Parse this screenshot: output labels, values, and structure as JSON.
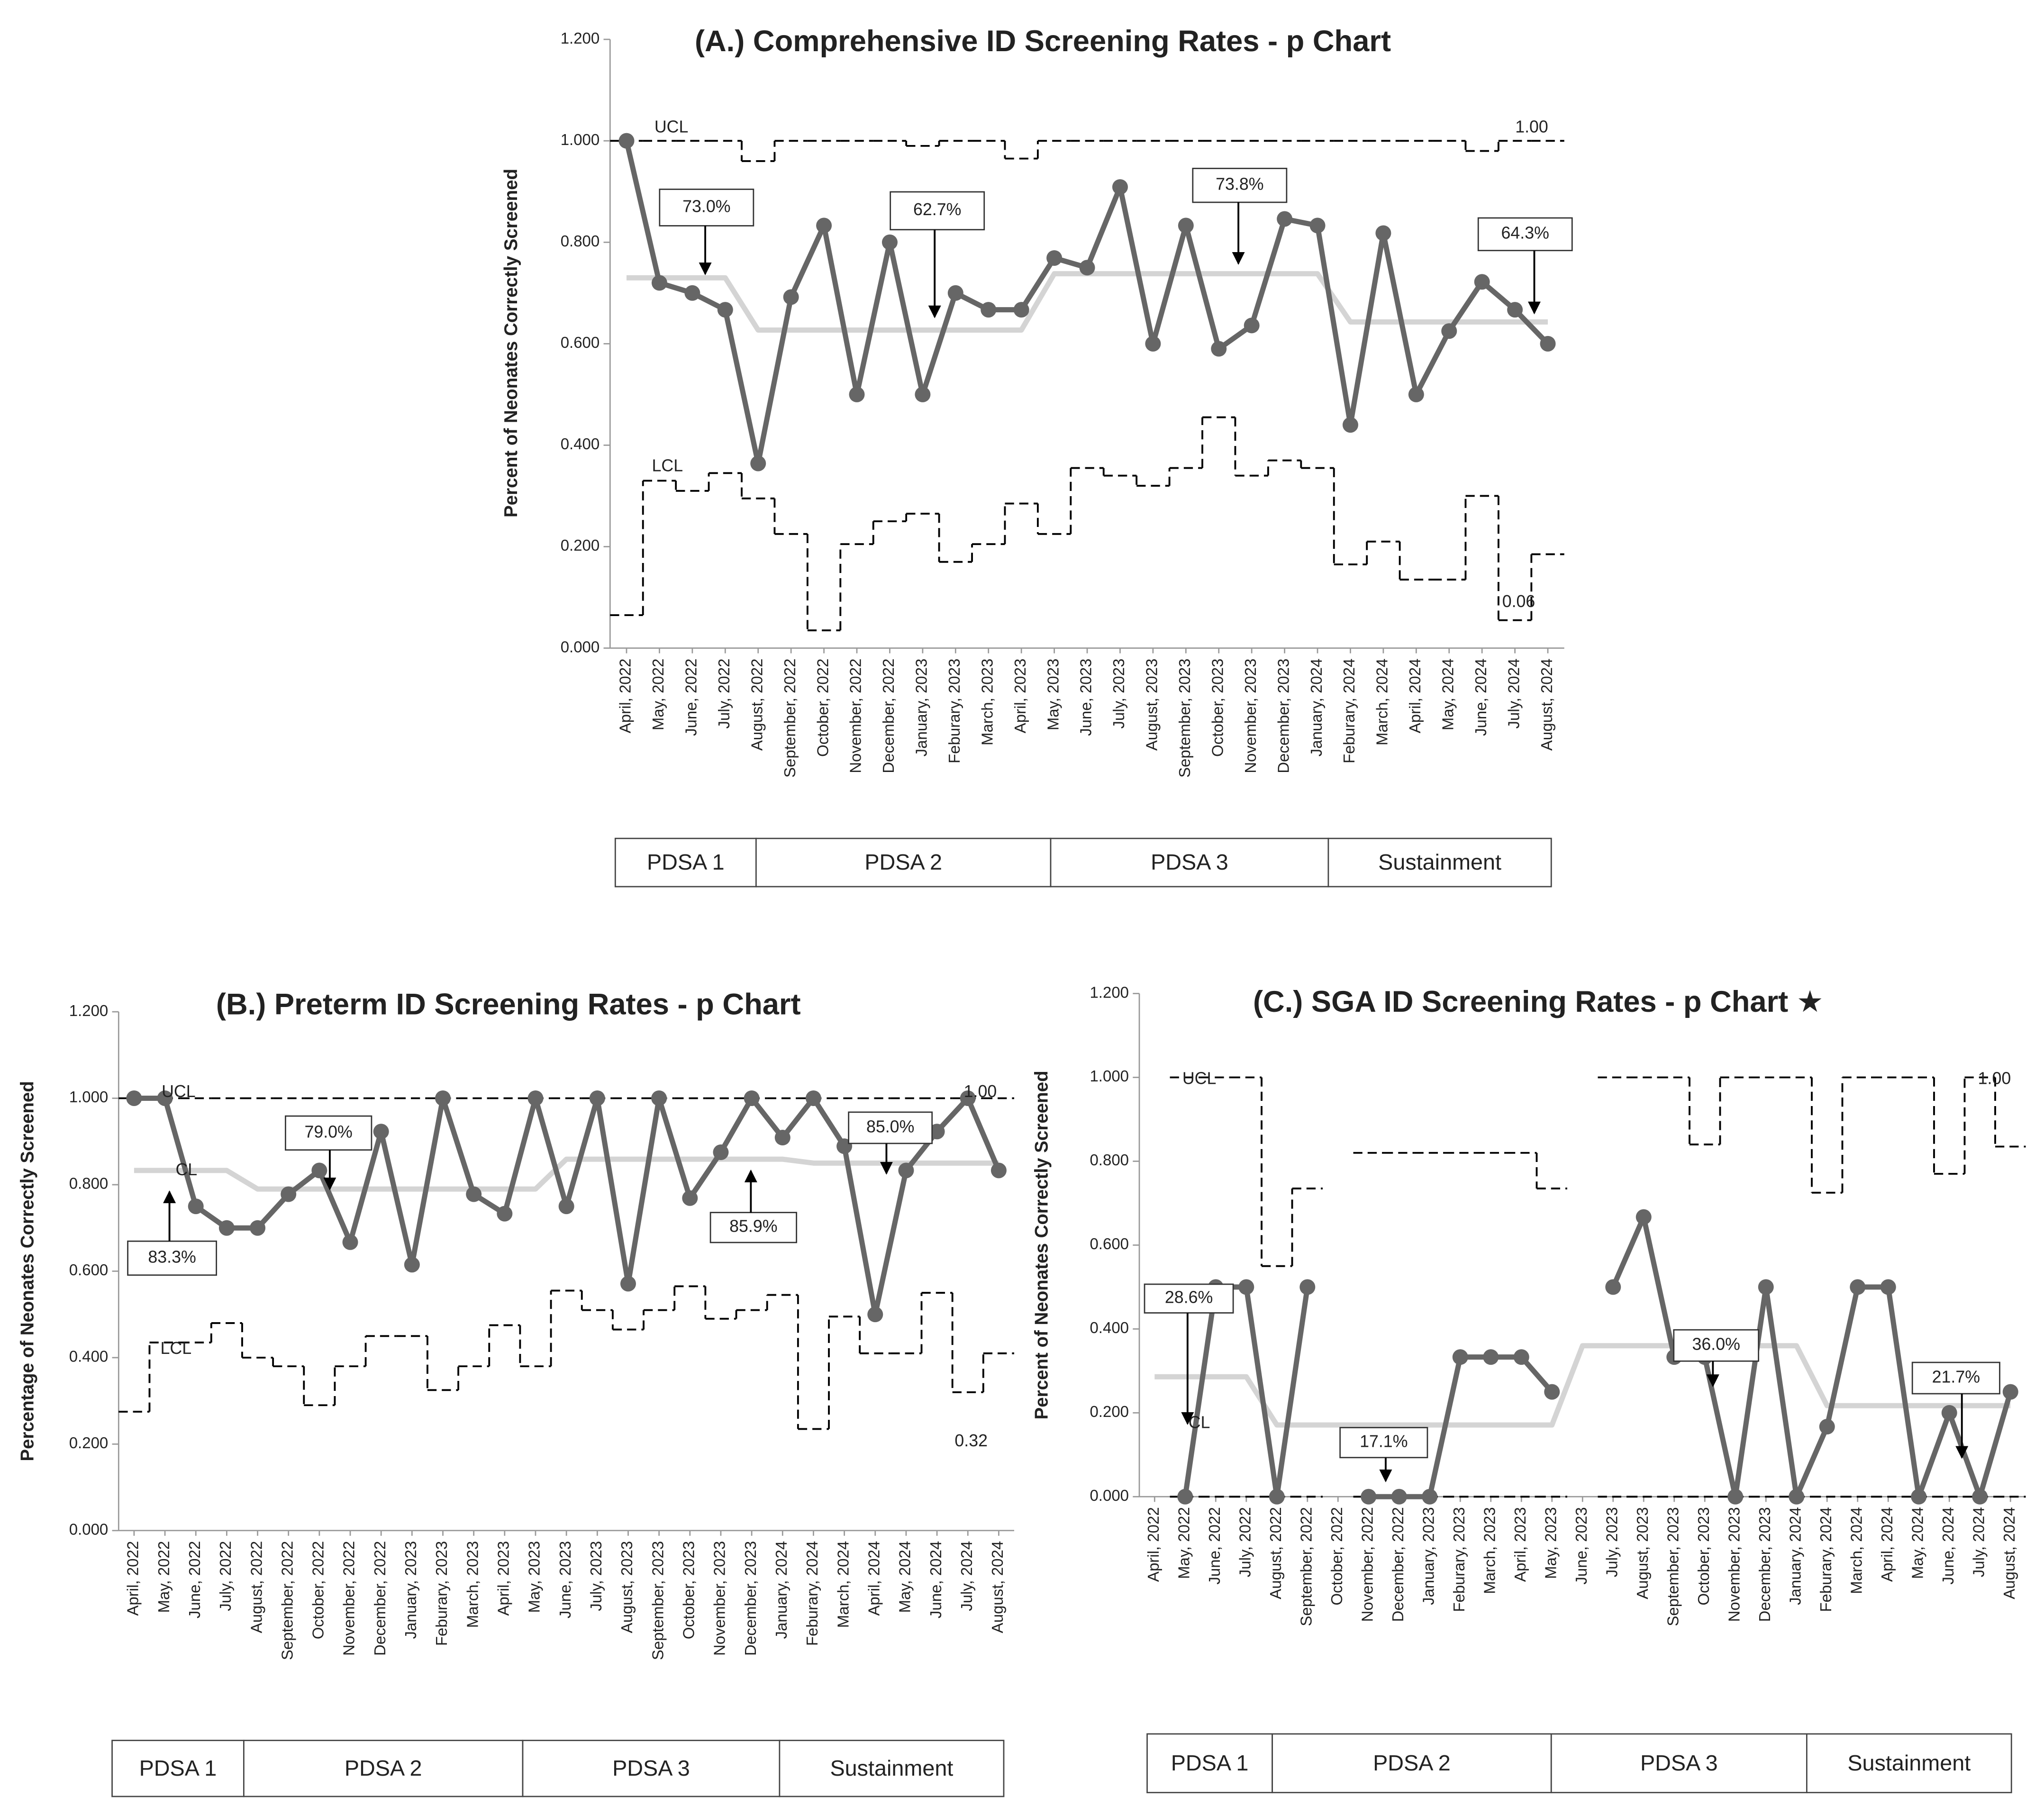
{
  "chart_data": [
    {
      "type": "p-chart",
      "title": "(A.) Comprehensive ID Screening Rates - p Chart",
      "y_label": "Percent of Neonates Correctly Screened",
      "categories": [
        "April, 2022",
        "May, 2022",
        "June, 2022",
        "July, 2022",
        "August, 2022",
        "September, 2022",
        "October, 2022",
        "November, 2022",
        "December, 2022",
        "January, 2023",
        "Feburary, 2023",
        "March, 2023",
        "April, 2023",
        "May, 2023",
        "June, 2023",
        "July, 2023",
        "August, 2023",
        "September, 2023",
        "October, 2023",
        "November, 2023",
        "December, 2023",
        "January, 2024",
        "Feburary, 2024",
        "March, 2024",
        "April, 2024",
        "May, 2024",
        "June, 2024",
        "July, 2024",
        "August, 2024"
      ],
      "series": [
        {
          "style": "line-markers",
          "color": "#666666",
          "values": [
            1.0,
            0.72,
            0.7,
            0.667,
            0.364,
            0.692,
            0.833,
            0.5,
            0.8,
            0.5,
            0.7,
            0.667,
            0.667,
            0.769,
            0.75,
            0.909,
            0.6,
            0.833,
            0.59,
            0.636,
            0.846,
            0.833,
            0.44,
            0.818,
            0.5,
            0.625,
            0.722,
            0.667,
            0.6
          ]
        },
        {
          "style": "line",
          "color": "#d4d4d4",
          "values": [
            0.73,
            0.73,
            0.73,
            0.73,
            0.627,
            0.627,
            0.627,
            0.627,
            0.627,
            0.627,
            0.627,
            0.627,
            0.627,
            0.738,
            0.738,
            0.738,
            0.738,
            0.738,
            0.738,
            0.738,
            0.738,
            0.738,
            0.643,
            0.643,
            0.643,
            0.643,
            0.643,
            0.643,
            0.643
          ]
        },
        {
          "style": "dashed-step",
          "color": "#000000",
          "values": [
            1,
            1,
            1,
            1,
            0.96,
            1,
            1,
            1,
            1,
            0.99,
            1,
            1,
            0.965,
            1,
            1,
            1,
            1,
            1,
            1,
            1,
            1,
            1,
            1,
            1,
            1,
            1,
            0.98,
            1,
            1
          ]
        },
        {
          "style": "dashed-step",
          "color": "#000000",
          "values": [
            0.065,
            0.33,
            0.31,
            0.345,
            0.295,
            0.225,
            0.035,
            0.205,
            0.25,
            0.265,
            0.17,
            0.205,
            0.285,
            0.225,
            0.355,
            0.34,
            0.32,
            0.355,
            0.455,
            0.34,
            0.37,
            0.355,
            0.165,
            0.21,
            0.135,
            0.135,
            0.3,
            0.055,
            0.185
          ]
        }
      ],
      "ylim": [
        0,
        1.2
      ],
      "yticks": [
        {
          "value": 0,
          "label": "0.000"
        },
        {
          "value": 0.2,
          "label": "0.200"
        },
        {
          "value": 0.4,
          "label": "0.400"
        },
        {
          "value": 0.6,
          "label": "0.600"
        },
        {
          "value": 0.8,
          "label": "0.800"
        },
        {
          "value": 1.0,
          "label": "1.000"
        },
        {
          "value": 1.2,
          "label": "1.200"
        }
      ],
      "annotations": [
        "UCL",
        "LCL",
        "1.00",
        "0.06",
        "73.0%",
        "62.7%",
        "73.8%",
        "64.3%"
      ],
      "phases": [
        "PDSA 1",
        "PDSA 2",
        "PDSA 3",
        "Sustainment"
      ]
    },
    {
      "type": "p-chart",
      "title": "(B.) Preterm ID Screening Rates - p Chart",
      "y_label": "Percentage of Neonates Correctly Screened",
      "categories": [
        "April, 2022",
        "May, 2022",
        "June, 2022",
        "July, 2022",
        "August, 2022",
        "September, 2022",
        "October, 2022",
        "November, 2022",
        "December, 2022",
        "January, 2023",
        "Feburary, 2023",
        "March, 2023",
        "April, 2023",
        "May, 2023",
        "June, 2023",
        "July, 2023",
        "August, 2023",
        "September, 2023",
        "October, 2023",
        "November, 2023",
        "December, 2023",
        "January, 2024",
        "Feburary, 2024",
        "March, 2024",
        "April, 2024",
        "May, 2024",
        "June, 2024",
        "July, 2024",
        "August, 2024"
      ],
      "series": [
        {
          "style": "line-markers",
          "color": "#666666",
          "values": [
            1.0,
            1.0,
            0.75,
            0.7,
            0.7,
            0.778,
            0.833,
            0.667,
            0.923,
            0.615,
            1.0,
            0.778,
            0.733,
            1.0,
            0.75,
            1.0,
            0.571,
            1.0,
            0.769,
            0.875,
            1.0,
            0.909,
            1.0,
            0.889,
            0.5,
            0.833,
            0.923,
            1.0,
            0.833
          ]
        },
        {
          "style": "line",
          "color": "#d4d4d4",
          "values": [
            0.833,
            0.833,
            0.833,
            0.833,
            0.79,
            0.79,
            0.79,
            0.79,
            0.79,
            0.79,
            0.79,
            0.79,
            0.79,
            0.79,
            0.859,
            0.859,
            0.859,
            0.859,
            0.859,
            0.859,
            0.859,
            0.859,
            0.85,
            0.85,
            0.85,
            0.85,
            0.85,
            0.85,
            0.85
          ]
        },
        {
          "style": "dashed-step",
          "color": "#000000",
          "values": [
            1,
            1,
            1,
            1,
            1,
            1,
            1,
            1,
            1,
            1,
            1,
            1,
            1,
            1,
            1,
            1,
            1,
            1,
            1,
            1,
            1,
            1,
            1,
            1,
            1,
            1,
            1,
            1,
            1
          ]
        },
        {
          "style": "dashed-step",
          "color": "#000000",
          "values": [
            0.275,
            0.435,
            0.435,
            0.48,
            0.4,
            0.38,
            0.29,
            0.38,
            0.45,
            0.45,
            0.325,
            0.38,
            0.475,
            0.38,
            0.555,
            0.51,
            0.465,
            0.51,
            0.565,
            0.49,
            0.51,
            0.545,
            0.235,
            0.495,
            0.41,
            0.41,
            0.55,
            0.32,
            0.41
          ]
        }
      ],
      "ylim": [
        0,
        1.2
      ],
      "yticks": [
        {
          "value": 0,
          "label": "0.000"
        },
        {
          "value": 0.2,
          "label": "0.200"
        },
        {
          "value": 0.4,
          "label": "0.400"
        },
        {
          "value": 0.6,
          "label": "0.600"
        },
        {
          "value": 0.8,
          "label": "0.800"
        },
        {
          "value": 1.0,
          "label": "1.000"
        },
        {
          "value": 1.2,
          "label": "1.200"
        }
      ],
      "annotations": [
        "UCL",
        "CL",
        "LCL",
        "1.00",
        "0.32",
        "79.0%",
        "83.3%",
        "85.9%",
        "85.0%"
      ],
      "phases": [
        "PDSA 1",
        "PDSA 2",
        "PDSA 3",
        "Sustainment"
      ]
    },
    {
      "type": "p-chart",
      "title": "(C.) SGA ID Screening Rates - p Chart ★",
      "y_label": "Percent of Neonates Correctly Screened",
      "categories": [
        "April, 2022",
        "May, 2022",
        "June, 2022",
        "July, 2022",
        "August, 2022",
        "September, 2022",
        "October, 2022",
        "November, 2022",
        "December, 2022",
        "January, 2023",
        "Feburary, 2023",
        "March, 2023",
        "April, 2023",
        "May, 2023",
        "June, 2023",
        "July, 2023",
        "August, 2023",
        "September, 2023",
        "October, 2023",
        "November, 2023",
        "December, 2023",
        "January, 2024",
        "Feburary, 2024",
        "March, 2024",
        "April, 2024",
        "May, 2024",
        "June, 2024",
        "July, 2024",
        "August, 2024"
      ],
      "series": [
        {
          "style": "line-markers",
          "color": "#666666",
          "values": [
            null,
            0,
            0.5,
            0.5,
            0,
            0.5,
            null,
            0,
            0,
            0,
            0.333,
            0.333,
            0.333,
            0.25,
            null,
            0.5,
            0.667,
            0.333,
            0.333,
            0,
            0.5,
            0,
            0.167,
            0.5,
            0.5,
            0,
            0.2,
            0,
            0.25
          ]
        },
        {
          "style": "line",
          "color": "#d4d4d4",
          "values": [
            0.286,
            0.286,
            0.286,
            0.286,
            0.171,
            0.171,
            0.171,
            0.171,
            0.171,
            0.171,
            0.171,
            0.171,
            0.171,
            0.171,
            0.36,
            0.36,
            0.36,
            0.36,
            0.36,
            0.36,
            0.36,
            0.36,
            0.217,
            0.217,
            0.217,
            0.217,
            0.217,
            0.217,
            0.217
          ]
        },
        {
          "style": "dashed-step",
          "color": "#000000",
          "values": [
            null,
            1,
            1,
            1,
            0.55,
            0.735,
            null,
            0.82,
            0.82,
            0.82,
            0.82,
            0.82,
            0.82,
            0.735,
            null,
            1,
            1,
            1,
            0.84,
            1,
            1,
            1,
            0.725,
            1,
            1,
            1,
            0.77,
            1,
            0.835
          ]
        },
        {
          "style": "dashed-step",
          "color": "#000000",
          "values": [
            null,
            0,
            0,
            0,
            0,
            0,
            null,
            0,
            0,
            0,
            0,
            0,
            0,
            0,
            null,
            0,
            0,
            0,
            0,
            0,
            0,
            0,
            0,
            0,
            0,
            0,
            0,
            0,
            0
          ]
        }
      ],
      "ylim": [
        0,
        1.2
      ],
      "yticks": [
        {
          "value": 0,
          "label": "0.000"
        },
        {
          "value": 0.2,
          "label": "0.200"
        },
        {
          "value": 0.4,
          "label": "0.400"
        },
        {
          "value": 0.6,
          "label": "0.600"
        },
        {
          "value": 0.8,
          "label": "0.800"
        },
        {
          "value": 1.0,
          "label": "1.000"
        },
        {
          "value": 1.2,
          "label": "1.200"
        }
      ],
      "annotations": [
        "UCL",
        "CL",
        "1.00",
        "28.6%",
        "17.1%",
        "36.0%",
        "21.7%"
      ],
      "phases": [
        "PDSA 1",
        "PDSA 2",
        "PDSA 3",
        "Sustainment"
      ]
    }
  ]
}
